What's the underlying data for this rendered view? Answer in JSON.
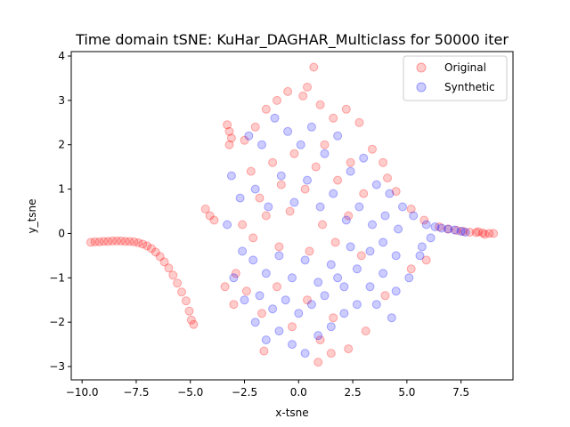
{
  "chart_data": {
    "type": "scatter",
    "title": "Time domain tSNE: KuHar_DAGHAR_Multiclass for 50000 iter",
    "xlabel": "x-tsne",
    "ylabel": "y_tsne",
    "xlim": [
      -10.5,
      9.9
    ],
    "ylim": [
      -3.3,
      4.1
    ],
    "xticks": [
      -10.0,
      -7.5,
      -5.0,
      -2.5,
      0.0,
      2.5,
      5.0,
      7.5
    ],
    "xtick_labels": [
      "−10.0",
      "−7.5",
      "−5.0",
      "−2.5",
      "0.0",
      "2.5",
      "5.0",
      "7.5"
    ],
    "yticks": [
      -3,
      -2,
      -1,
      0,
      1,
      2,
      3,
      4
    ],
    "ytick_labels": [
      "−3",
      "−2",
      "−1",
      "0",
      "1",
      "2",
      "3",
      "4"
    ],
    "grid": false,
    "legend_position": "top-right",
    "series": [
      {
        "name": "Original",
        "color": "#ff0000",
        "points": [
          [
            -9.6,
            -0.2
          ],
          [
            -9.4,
            -0.19
          ],
          [
            -9.2,
            -0.19
          ],
          [
            -9.0,
            -0.18
          ],
          [
            -8.8,
            -0.18
          ],
          [
            -8.6,
            -0.17
          ],
          [
            -8.4,
            -0.17
          ],
          [
            -8.2,
            -0.17
          ],
          [
            -8.0,
            -0.18
          ],
          [
            -7.8,
            -0.18
          ],
          [
            -7.6,
            -0.19
          ],
          [
            -7.4,
            -0.21
          ],
          [
            -7.2,
            -0.24
          ],
          [
            -7.0,
            -0.28
          ],
          [
            -6.8,
            -0.34
          ],
          [
            -6.6,
            -0.42
          ],
          [
            -6.4,
            -0.52
          ],
          [
            -6.2,
            -0.64
          ],
          [
            -6.0,
            -0.78
          ],
          [
            -5.8,
            -0.94
          ],
          [
            -5.6,
            -1.12
          ],
          [
            -5.4,
            -1.32
          ],
          [
            -5.2,
            -1.52
          ],
          [
            -5.05,
            -1.75
          ],
          [
            -4.95,
            -1.95
          ],
          [
            -4.85,
            -2.05
          ],
          [
            -3.3,
            2.45
          ],
          [
            -3.2,
            2.3
          ],
          [
            -3.1,
            2.15
          ],
          [
            -3.2,
            2.0
          ],
          [
            -4.3,
            0.55
          ],
          [
            -4.1,
            0.4
          ],
          [
            -3.9,
            0.3
          ],
          [
            -3.0,
            -1.6
          ],
          [
            -3.4,
            -1.2
          ],
          [
            -2.9,
            -0.9
          ],
          [
            -2.5,
            2.1
          ],
          [
            -2.0,
            2.4
          ],
          [
            -1.5,
            2.8
          ],
          [
            -1.0,
            3.0
          ],
          [
            -0.5,
            3.2
          ],
          [
            0.2,
            3.1
          ],
          [
            0.7,
            3.75
          ],
          [
            0.4,
            3.3
          ],
          [
            1.0,
            2.9
          ],
          [
            1.6,
            2.6
          ],
          [
            2.2,
            2.8
          ],
          [
            2.8,
            2.5
          ],
          [
            3.4,
            1.9
          ],
          [
            3.9,
            1.6
          ],
          [
            4.1,
            1.25
          ],
          [
            4.5,
            0.95
          ],
          [
            5.2,
            0.55
          ],
          [
            5.8,
            0.3
          ],
          [
            -2.2,
            1.4
          ],
          [
            -1.8,
            0.8
          ],
          [
            -1.2,
            1.6
          ],
          [
            -0.8,
            1.1
          ],
          [
            -0.2,
            1.8
          ],
          [
            0.3,
            1.0
          ],
          [
            0.8,
            1.5
          ],
          [
            1.2,
            2.0
          ],
          [
            1.8,
            1.2
          ],
          [
            2.4,
            1.6
          ],
          [
            3.0,
            0.9
          ],
          [
            -2.6,
            0.2
          ],
          [
            -2.1,
            -0.1
          ],
          [
            -1.5,
            0.4
          ],
          [
            -0.9,
            -0.3
          ],
          [
            -0.4,
            0.5
          ],
          [
            0.5,
            -0.4
          ],
          [
            1.1,
            0.2
          ],
          [
            1.7,
            -0.2
          ],
          [
            2.3,
            0.4
          ],
          [
            2.9,
            -0.5
          ],
          [
            -2.4,
            -1.3
          ],
          [
            -1.7,
            -1.8
          ],
          [
            -1.0,
            -1.2
          ],
          [
            -0.3,
            -2.1
          ],
          [
            0.4,
            -1.5
          ],
          [
            1.0,
            -2.4
          ],
          [
            1.6,
            -1.9
          ],
          [
            2.3,
            -2.6
          ],
          [
            1.5,
            -2.7
          ],
          [
            0.9,
            -2.9
          ],
          [
            -1.6,
            -2.65
          ],
          [
            3.1,
            -2.2
          ],
          [
            4.0,
            -1.4
          ],
          [
            5.2,
            -0.8
          ],
          [
            5.9,
            -0.6
          ],
          [
            6.5,
            0.15
          ],
          [
            6.9,
            0.1
          ],
          [
            7.3,
            0.07
          ],
          [
            7.6,
            0.05
          ],
          [
            7.9,
            0.03
          ],
          [
            8.2,
            0.02
          ],
          [
            8.5,
            0.01
          ],
          [
            8.8,
            0.0
          ],
          [
            9.0,
            0.0
          ],
          [
            8.6,
            -0.02
          ],
          [
            8.3,
            0.04
          ]
        ]
      },
      {
        "name": "Synthetic",
        "color": "#0000ff",
        "points": [
          [
            -3.1,
            1.3
          ],
          [
            -2.7,
            0.8
          ],
          [
            -3.3,
            0.2
          ],
          [
            -2.6,
            -0.4
          ],
          [
            -3.0,
            -1.0
          ],
          [
            -2.5,
            -1.5
          ],
          [
            -2.0,
            -2.0
          ],
          [
            -1.5,
            -2.4
          ],
          [
            -0.9,
            -2.2
          ],
          [
            -0.3,
            -2.5
          ],
          [
            0.3,
            -2.7
          ],
          [
            0.9,
            -2.3
          ],
          [
            1.5,
            -2.1
          ],
          [
            2.1,
            -1.8
          ],
          [
            2.7,
            -1.6
          ],
          [
            3.3,
            -1.2
          ],
          [
            3.9,
            -0.9
          ],
          [
            4.5,
            -1.3
          ],
          [
            5.1,
            -1.0
          ],
          [
            5.6,
            -0.5
          ],
          [
            -2.3,
            2.2
          ],
          [
            -1.7,
            2.0
          ],
          [
            -1.1,
            2.6
          ],
          [
            -0.5,
            2.3
          ],
          [
            0.1,
            2.0
          ],
          [
            0.6,
            2.4
          ],
          [
            1.2,
            1.8
          ],
          [
            1.8,
            2.2
          ],
          [
            2.4,
            1.4
          ],
          [
            3.0,
            1.7
          ],
          [
            3.6,
            1.1
          ],
          [
            4.2,
            0.9
          ],
          [
            4.8,
            0.6
          ],
          [
            5.3,
            0.4
          ],
          [
            -2.0,
            1.0
          ],
          [
            -1.4,
            0.6
          ],
          [
            -0.8,
            1.3
          ],
          [
            -0.2,
            0.7
          ],
          [
            0.4,
            1.2
          ],
          [
            1.0,
            0.6
          ],
          [
            1.6,
            0.9
          ],
          [
            2.2,
            0.3
          ],
          [
            2.8,
            0.6
          ],
          [
            3.4,
            0.2
          ],
          [
            4.0,
            0.4
          ],
          [
            4.6,
            0.1
          ],
          [
            -2.1,
            -0.6
          ],
          [
            -1.5,
            -0.9
          ],
          [
            -0.9,
            -0.5
          ],
          [
            -0.3,
            -1.0
          ],
          [
            0.3,
            -0.6
          ],
          [
            0.9,
            -1.1
          ],
          [
            1.5,
            -0.7
          ],
          [
            2.1,
            -1.2
          ],
          [
            2.7,
            -0.8
          ],
          [
            3.3,
            -0.4
          ],
          [
            3.9,
            -0.2
          ],
          [
            4.5,
            -0.5
          ],
          [
            -1.8,
            -1.4
          ],
          [
            -1.2,
            -1.7
          ],
          [
            -0.6,
            -1.5
          ],
          [
            0.0,
            -1.8
          ],
          [
            0.6,
            -1.6
          ],
          [
            1.2,
            -1.4
          ],
          [
            1.8,
            -1.0
          ],
          [
            2.4,
            -0.3
          ],
          [
            3.6,
            -1.6
          ],
          [
            4.3,
            -1.9
          ],
          [
            5.9,
            0.2
          ],
          [
            6.3,
            0.15
          ],
          [
            6.6,
            0.12
          ],
          [
            6.9,
            0.1
          ],
          [
            7.2,
            0.08
          ],
          [
            7.5,
            0.05
          ],
          [
            7.7,
            0.03
          ],
          [
            6.1,
            -0.1
          ],
          [
            5.7,
            -0.3
          ]
        ]
      }
    ]
  }
}
